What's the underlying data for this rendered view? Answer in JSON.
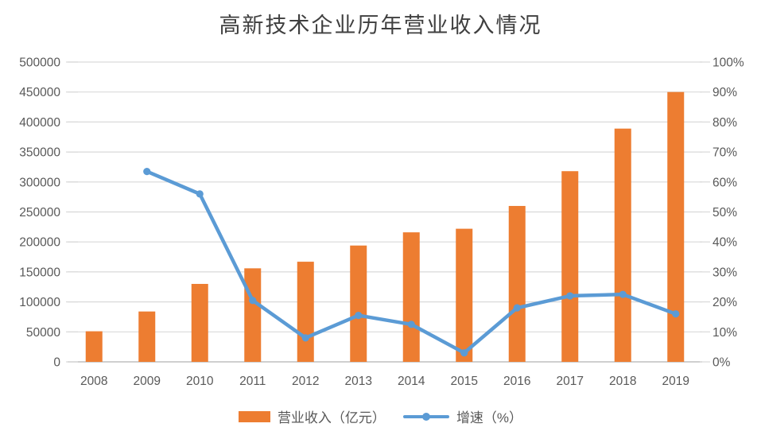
{
  "chart_data": {
    "type": "combo-bar-line",
    "title": "高新技术企业历年营业收入情况",
    "categories": [
      "2008",
      "2009",
      "2010",
      "2011",
      "2012",
      "2013",
      "2014",
      "2015",
      "2016",
      "2017",
      "2018",
      "2019"
    ],
    "series": [
      {
        "name": "营业收入（亿元）",
        "type": "bar",
        "axis": "left",
        "color": "#ED7D31",
        "values": [
          51000,
          84000,
          130000,
          156000,
          167000,
          194000,
          216000,
          222000,
          260000,
          318000,
          389000,
          450000
        ]
      },
      {
        "name": "增速（%）",
        "type": "line",
        "axis": "right",
        "color": "#5B9BD5",
        "values": [
          null,
          63.5,
          56,
          20.5,
          8,
          15.5,
          12.5,
          3,
          18,
          22,
          22.5,
          16
        ]
      }
    ],
    "left_axis": {
      "min": 0,
      "max": 500000,
      "step": 50000,
      "tick_labels": [
        "0",
        "50000",
        "100000",
        "150000",
        "200000",
        "250000",
        "300000",
        "350000",
        "400000",
        "450000",
        "500000"
      ]
    },
    "right_axis": {
      "min": 0,
      "max": 100,
      "step": 10,
      "tick_labels": [
        "0%",
        "10%",
        "20%",
        "30%",
        "40%",
        "50%",
        "60%",
        "70%",
        "80%",
        "90%",
        "100%"
      ]
    },
    "grid": true,
    "legend_position": "bottom",
    "colors": {
      "gridline": "#D9D9D9",
      "baseline": "#BFBFBF",
      "axis_text": "#595959",
      "title_text": "#3F3F3F",
      "background": "#FFFFFF"
    }
  }
}
